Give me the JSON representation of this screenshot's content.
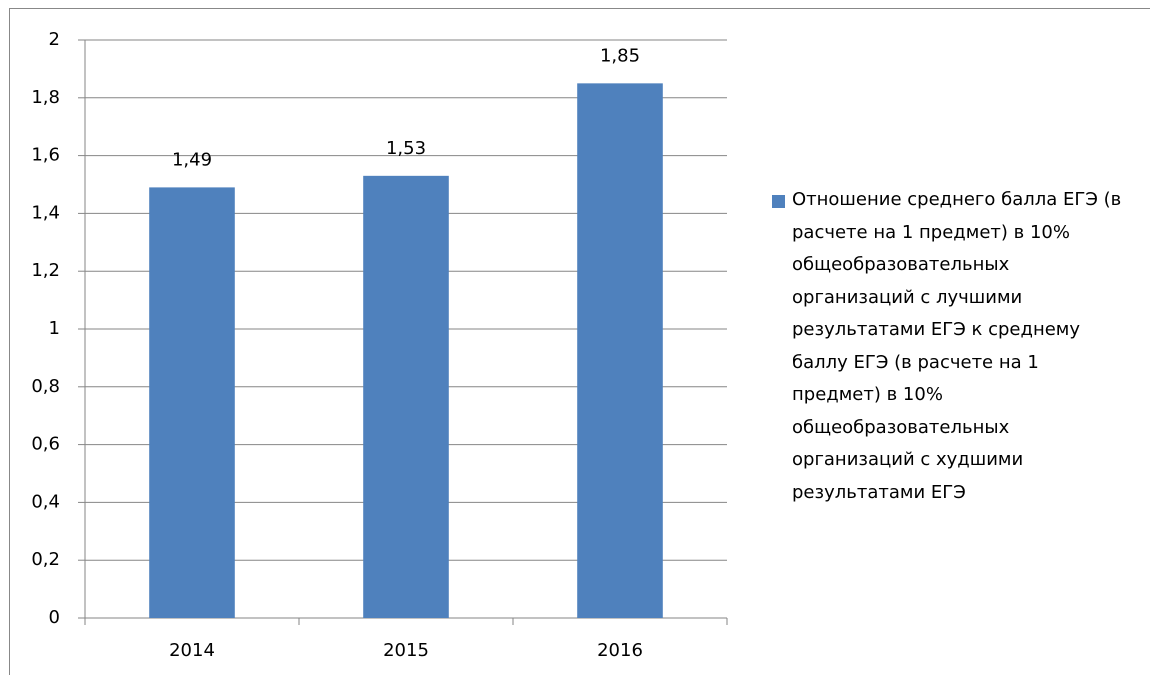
{
  "chart_data": {
    "type": "bar",
    "categories": [
      "2014",
      "2015",
      "2016"
    ],
    "series": [
      {
        "name": "Отношение среднего балла ЕГЭ (в расчете на 1 предмет) в 10% общеобразовательных организаций с лучшими результатами ЕГЭ к среднему баллу ЕГЭ (в расчете на 1 предмет) в 10% общеобразовательных организаций с худшими результатами ЕГЭ",
        "color": "#4f81bd",
        "values": [
          1.49,
          1.53,
          1.85
        ],
        "value_labels": [
          "1,49",
          "1,53",
          "1,85"
        ]
      }
    ],
    "ylim": [
      0,
      2
    ],
    "yticks": [
      0,
      {
        "value": 0.2,
        "label": "0,2"
      },
      {
        "value": 0.4,
        "label": "0,4"
      },
      {
        "value": 0.6,
        "label": "0,6"
      },
      {
        "value": 0.8,
        "label": "0,8"
      },
      1,
      {
        "value": 1.2,
        "label": "1,2"
      },
      {
        "value": 1.4,
        "label": "1,4"
      },
      {
        "value": 1.6,
        "label": "1,6"
      },
      {
        "value": 1.8,
        "label": "1,8"
      },
      2
    ],
    "grid": true,
    "legend": "right"
  }
}
